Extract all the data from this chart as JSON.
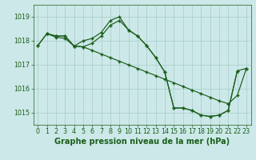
{
  "bg_color": "#cce8e8",
  "grid_color": "#aacccc",
  "line_color": "#1a5e1a",
  "xlabel": "Graphe pression niveau de la mer (hPa)",
  "xlabel_fontsize": 7.0,
  "tick_fontsize": 5.8,
  "ylim": [
    1014.5,
    1019.5
  ],
  "xlim": [
    -0.5,
    23.5
  ],
  "yticks": [
    1015,
    1016,
    1017,
    1018,
    1019
  ],
  "xticks": [
    0,
    1,
    2,
    3,
    4,
    5,
    6,
    7,
    8,
    9,
    10,
    11,
    12,
    13,
    14,
    15,
    16,
    17,
    18,
    19,
    20,
    21,
    22,
    23
  ],
  "series1_x": [
    0,
    1,
    2,
    3,
    4,
    5,
    6,
    7,
    8,
    9,
    10,
    11,
    12,
    13,
    14,
    15,
    16,
    17,
    18,
    19,
    20,
    21,
    22
  ],
  "series1_y": [
    1017.8,
    1018.3,
    1018.2,
    1018.2,
    1017.78,
    1018.0,
    1018.1,
    1018.35,
    1018.85,
    1019.0,
    1018.45,
    1018.2,
    1017.8,
    1017.3,
    1016.7,
    1015.2,
    1015.2,
    1015.1,
    1014.9,
    1014.85,
    1014.9,
    1015.1,
    1016.75
  ],
  "series2_x": [
    0,
    1,
    2,
    3,
    4,
    5,
    6,
    7,
    8,
    9,
    10,
    11,
    12,
    13,
    14,
    15,
    16,
    17,
    18,
    19,
    20,
    21,
    22,
    23
  ],
  "series2_y": [
    1017.8,
    1018.3,
    1018.15,
    1018.1,
    1017.78,
    1017.75,
    1017.6,
    1017.45,
    1017.3,
    1017.15,
    1017.0,
    1016.85,
    1016.7,
    1016.55,
    1016.4,
    1016.25,
    1016.1,
    1015.95,
    1015.8,
    1015.65,
    1015.5,
    1015.38,
    1015.72,
    1016.85
  ],
  "series3_x": [
    1,
    2,
    3,
    4,
    5,
    6,
    7,
    8,
    9,
    10,
    11,
    12,
    13,
    14,
    15,
    16,
    17,
    18,
    19,
    20,
    21,
    22,
    23
  ],
  "series3_y": [
    1018.3,
    1018.2,
    1018.2,
    1017.78,
    1017.75,
    1017.9,
    1018.2,
    1018.65,
    1018.85,
    1018.45,
    1018.2,
    1017.8,
    1017.3,
    1016.7,
    1015.2,
    1015.2,
    1015.1,
    1014.9,
    1014.85,
    1014.9,
    1015.1,
    1016.75,
    1016.85
  ]
}
